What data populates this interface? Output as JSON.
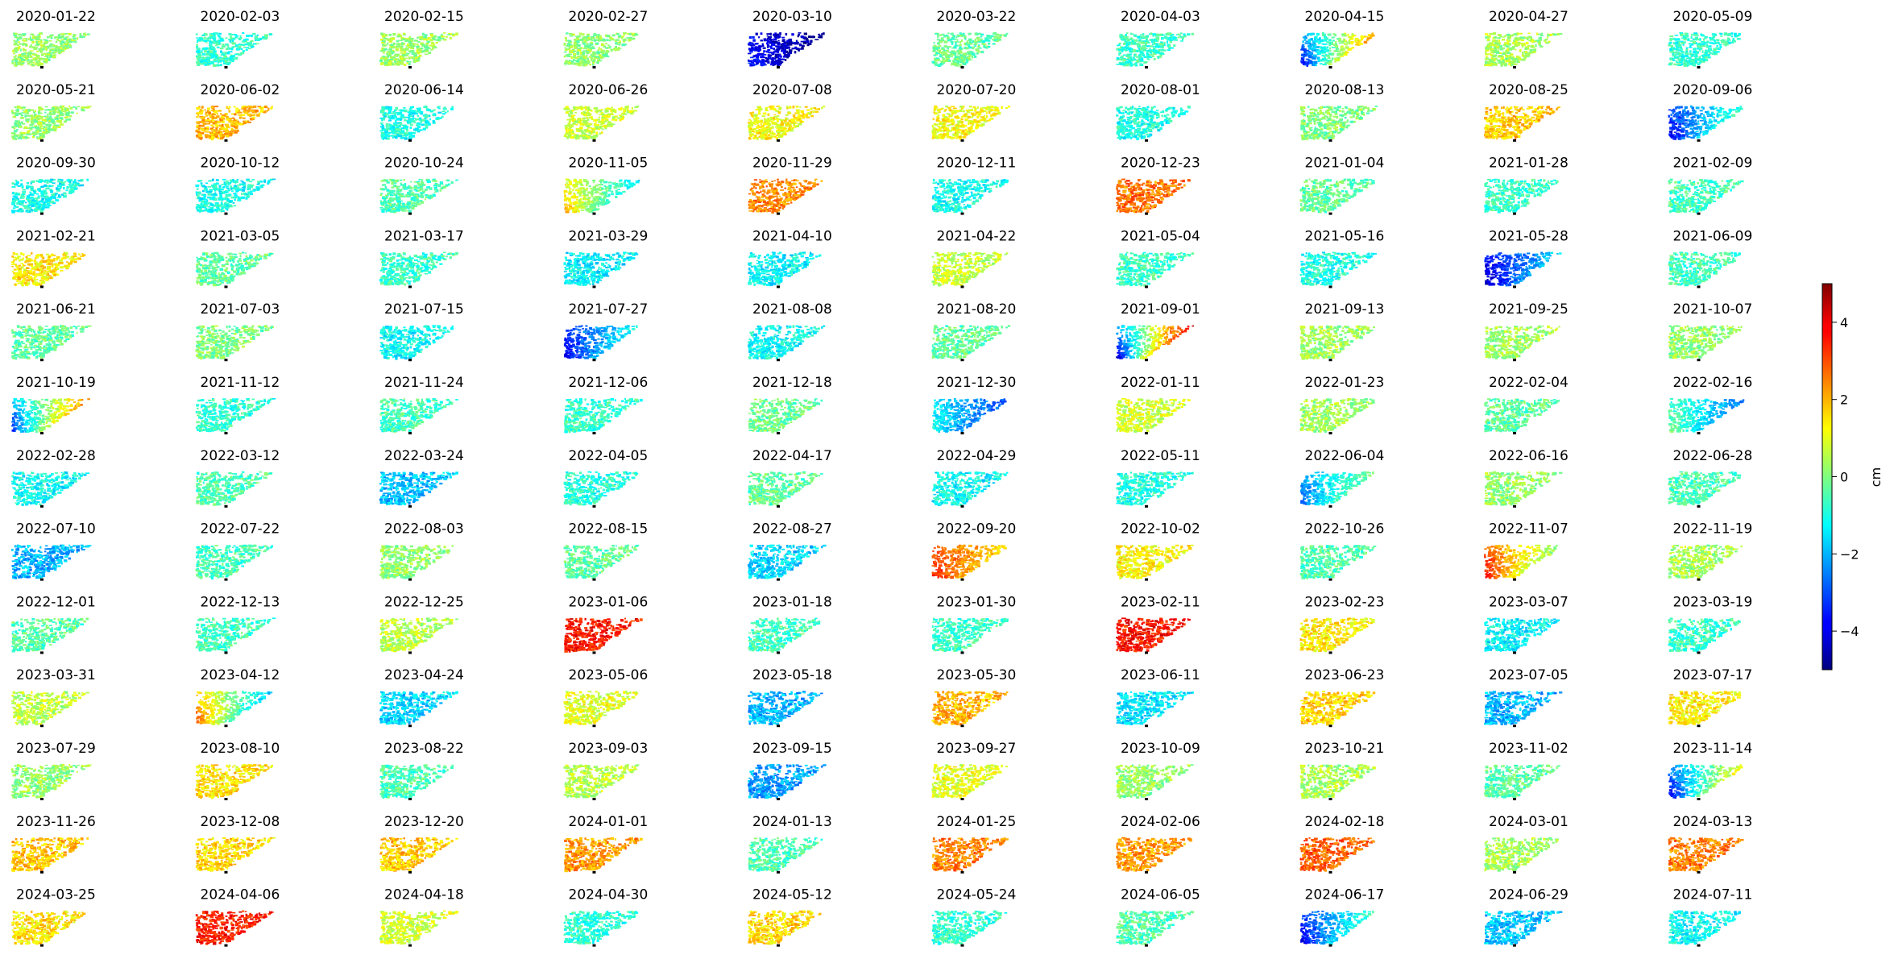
{
  "chart_data": {
    "type": "heatmap",
    "layout": "small-multiples grid, 10 columns x 13 rows",
    "colormap": "jet",
    "colorbar": {
      "label": "cm",
      "range": [
        -5,
        5
      ],
      "ticks": [
        {
          "value": 4,
          "label": "4"
        },
        {
          "value": 2,
          "label": "2"
        },
        {
          "value": 0,
          "label": "0"
        },
        {
          "value": -2,
          "label": "−2"
        },
        {
          "value": -4,
          "label": "−4"
        }
      ],
      "placement": "right"
    },
    "panels": [
      {
        "title": "2020-01-22",
        "mean": 0.2
      },
      {
        "title": "2020-02-03",
        "mean": -0.8
      },
      {
        "title": "2020-02-15",
        "mean": 0.3
      },
      {
        "title": "2020-02-27",
        "mean": 0.2
      },
      {
        "title": "2020-03-10",
        "mean": -4.2,
        "gradient": [
          -3.5,
          -4.8
        ]
      },
      {
        "title": "2020-03-22",
        "mean": -0.3
      },
      {
        "title": "2020-04-03",
        "mean": -0.7
      },
      {
        "title": "2020-04-15",
        "mean": 1.4,
        "gradient": [
          -4,
          2.5
        ]
      },
      {
        "title": "2020-04-27",
        "mean": 0.4
      },
      {
        "title": "2020-05-09",
        "mean": -0.8
      },
      {
        "title": "2020-05-21",
        "mean": 0.2
      },
      {
        "title": "2020-06-02",
        "mean": 1.9
      },
      {
        "title": "2020-06-14",
        "mean": -1.0
      },
      {
        "title": "2020-06-26",
        "mean": 0.8
      },
      {
        "title": "2020-07-08",
        "mean": 1.2
      },
      {
        "title": "2020-07-20",
        "mean": 1.2
      },
      {
        "title": "2020-08-01",
        "mean": -1.0
      },
      {
        "title": "2020-08-13",
        "mean": 0.0
      },
      {
        "title": "2020-08-25",
        "mean": 1.8
      },
      {
        "title": "2020-09-06",
        "mean": -1.8,
        "gradient": [
          -4,
          -0.5
        ]
      },
      {
        "title": "2020-09-30",
        "mean": -1.1
      },
      {
        "title": "2020-10-12",
        "mean": -1.1
      },
      {
        "title": "2020-10-24",
        "mean": -0.4
      },
      {
        "title": "2020-11-05",
        "mean": 0.8,
        "gradient": [
          2,
          -1.5
        ]
      },
      {
        "title": "2020-11-29",
        "mean": 2.4
      },
      {
        "title": "2020-12-11",
        "mean": -1.1
      },
      {
        "title": "2020-12-23",
        "mean": 2.6
      },
      {
        "title": "2021-01-04",
        "mean": -0.3
      },
      {
        "title": "2021-01-28",
        "mean": -0.7
      },
      {
        "title": "2021-02-09",
        "mean": -0.6
      },
      {
        "title": "2021-02-21",
        "mean": 1.4
      },
      {
        "title": "2021-03-05",
        "mean": -0.3
      },
      {
        "title": "2021-03-17",
        "mean": -0.7
      },
      {
        "title": "2021-03-29",
        "mean": -1.3
      },
      {
        "title": "2021-04-10",
        "mean": -1.3
      },
      {
        "title": "2021-04-22",
        "mean": 0.7
      },
      {
        "title": "2021-05-04",
        "mean": -0.7
      },
      {
        "title": "2021-05-16",
        "mean": -1.0
      },
      {
        "title": "2021-05-28",
        "mean": -3.5,
        "gradient": [
          -4.5,
          -1.5
        ]
      },
      {
        "title": "2021-06-09",
        "mean": -0.6
      },
      {
        "title": "2021-06-21",
        "mean": -0.3
      },
      {
        "title": "2021-07-03",
        "mean": 0.0
      },
      {
        "title": "2021-07-15",
        "mean": -1.2
      },
      {
        "title": "2021-07-27",
        "mean": -2.4,
        "gradient": [
          -4,
          -1
        ]
      },
      {
        "title": "2021-08-08",
        "mean": -1.2
      },
      {
        "title": "2021-08-20",
        "mean": -0.3
      },
      {
        "title": "2021-09-01",
        "mean": -2.5,
        "gradient": [
          -4.5,
          4
        ]
      },
      {
        "title": "2021-09-13",
        "mean": 0.3
      },
      {
        "title": "2021-09-25",
        "mean": 0.4
      },
      {
        "title": "2021-10-07",
        "mean": 0.2
      },
      {
        "title": "2021-10-19",
        "mean": -0.5,
        "gradient": [
          -3.5,
          2.5
        ]
      },
      {
        "title": "2021-11-12",
        "mean": -0.8
      },
      {
        "title": "2021-11-24",
        "mean": -0.6
      },
      {
        "title": "2021-12-06",
        "mean": -0.7
      },
      {
        "title": "2021-12-18",
        "mean": -0.2
      },
      {
        "title": "2021-12-30",
        "mean": -1.5,
        "gradient": [
          -1,
          -3
        ]
      },
      {
        "title": "2022-01-11",
        "mean": 0.8
      },
      {
        "title": "2022-01-23",
        "mean": 0.3
      },
      {
        "title": "2022-02-04",
        "mean": -0.3
      },
      {
        "title": "2022-02-16",
        "mean": -0.5,
        "gradient": [
          0,
          -2.5
        ]
      },
      {
        "title": "2022-02-28",
        "mean": -1.2
      },
      {
        "title": "2022-03-12",
        "mean": -0.5
      },
      {
        "title": "2022-03-24",
        "mean": -1.8
      },
      {
        "title": "2022-04-05",
        "mean": -0.9
      },
      {
        "title": "2022-04-17",
        "mean": -0.3
      },
      {
        "title": "2022-04-29",
        "mean": -1.2
      },
      {
        "title": "2022-05-11",
        "mean": -1.0
      },
      {
        "title": "2022-06-04",
        "mean": -1.8,
        "gradient": [
          -2.8,
          0
        ]
      },
      {
        "title": "2022-06-16",
        "mean": 0.2
      },
      {
        "title": "2022-06-28",
        "mean": -0.5
      },
      {
        "title": "2022-07-10",
        "mean": -2.0
      },
      {
        "title": "2022-07-22",
        "mean": -0.6
      },
      {
        "title": "2022-08-03",
        "mean": 0.2
      },
      {
        "title": "2022-08-15",
        "mean": -0.3
      },
      {
        "title": "2022-08-27",
        "mean": -1.6
      },
      {
        "title": "2022-09-20",
        "mean": 2.6,
        "gradient": [
          3.5,
          1.5
        ]
      },
      {
        "title": "2022-10-02",
        "mean": 1.3
      },
      {
        "title": "2022-10-26",
        "mean": -0.5
      },
      {
        "title": "2022-11-07",
        "mean": 2.3,
        "gradient": [
          3.8,
          0
        ]
      },
      {
        "title": "2022-11-19",
        "mean": 0.4
      },
      {
        "title": "2022-12-01",
        "mean": -0.4
      },
      {
        "title": "2022-12-13",
        "mean": -0.6
      },
      {
        "title": "2022-12-25",
        "mean": 0.6
      },
      {
        "title": "2023-01-06",
        "mean": 3.6
      },
      {
        "title": "2023-01-18",
        "mean": -0.6
      },
      {
        "title": "2023-01-30",
        "mean": -0.7
      },
      {
        "title": "2023-02-11",
        "mean": 3.6
      },
      {
        "title": "2023-02-23",
        "mean": 1.4
      },
      {
        "title": "2023-03-07",
        "mean": -1.3
      },
      {
        "title": "2023-03-19",
        "mean": -0.7
      },
      {
        "title": "2023-03-31",
        "mean": 0.6
      },
      {
        "title": "2023-04-12",
        "mean": 0.8,
        "gradient": [
          3,
          -2
        ]
      },
      {
        "title": "2023-04-24",
        "mean": -1.6
      },
      {
        "title": "2023-05-06",
        "mean": 1.0
      },
      {
        "title": "2023-05-18",
        "mean": -2.0
      },
      {
        "title": "2023-05-30",
        "mean": 2.0
      },
      {
        "title": "2023-06-11",
        "mean": -1.5
      },
      {
        "title": "2023-06-23",
        "mean": 1.7
      },
      {
        "title": "2023-07-05",
        "mean": -2.0
      },
      {
        "title": "2023-07-17",
        "mean": 1.4
      },
      {
        "title": "2023-07-29",
        "mean": 0.2
      },
      {
        "title": "2023-08-10",
        "mean": 1.5
      },
      {
        "title": "2023-08-22",
        "mean": -0.5
      },
      {
        "title": "2023-09-03",
        "mean": 0.6
      },
      {
        "title": "2023-09-15",
        "mean": -2.2
      },
      {
        "title": "2023-09-27",
        "mean": 1.0
      },
      {
        "title": "2023-10-09",
        "mean": 0.2
      },
      {
        "title": "2023-10-21",
        "mean": 0.4
      },
      {
        "title": "2023-11-02",
        "mean": -0.3
      },
      {
        "title": "2023-11-14",
        "mean": -1.8,
        "gradient": [
          -4,
          1.5
        ]
      },
      {
        "title": "2023-11-26",
        "mean": 1.8
      },
      {
        "title": "2023-12-08",
        "mean": 1.6
      },
      {
        "title": "2023-12-20",
        "mean": 1.8
      },
      {
        "title": "2024-01-01",
        "mean": 2.3
      },
      {
        "title": "2024-01-13",
        "mean": -0.5
      },
      {
        "title": "2024-01-25",
        "mean": 2.5
      },
      {
        "title": "2024-02-06",
        "mean": 2.2
      },
      {
        "title": "2024-02-18",
        "mean": 2.8
      },
      {
        "title": "2024-03-01",
        "mean": 0.4
      },
      {
        "title": "2024-03-13",
        "mean": 2.5
      },
      {
        "title": "2024-03-25",
        "mean": 1.5
      },
      {
        "title": "2024-04-06",
        "mean": 3.5
      },
      {
        "title": "2024-04-18",
        "mean": 0.8
      },
      {
        "title": "2024-04-30",
        "mean": -0.8
      },
      {
        "title": "2024-05-12",
        "mean": 1.6
      },
      {
        "title": "2024-05-24",
        "mean": -0.8
      },
      {
        "title": "2024-06-05",
        "mean": -0.5
      },
      {
        "title": "2024-06-17",
        "mean": -2.0,
        "gradient": [
          -4,
          -0.5
        ]
      },
      {
        "title": "2024-06-29",
        "mean": -1.8
      },
      {
        "title": "2024-07-11",
        "mean": -1.2
      }
    ]
  }
}
